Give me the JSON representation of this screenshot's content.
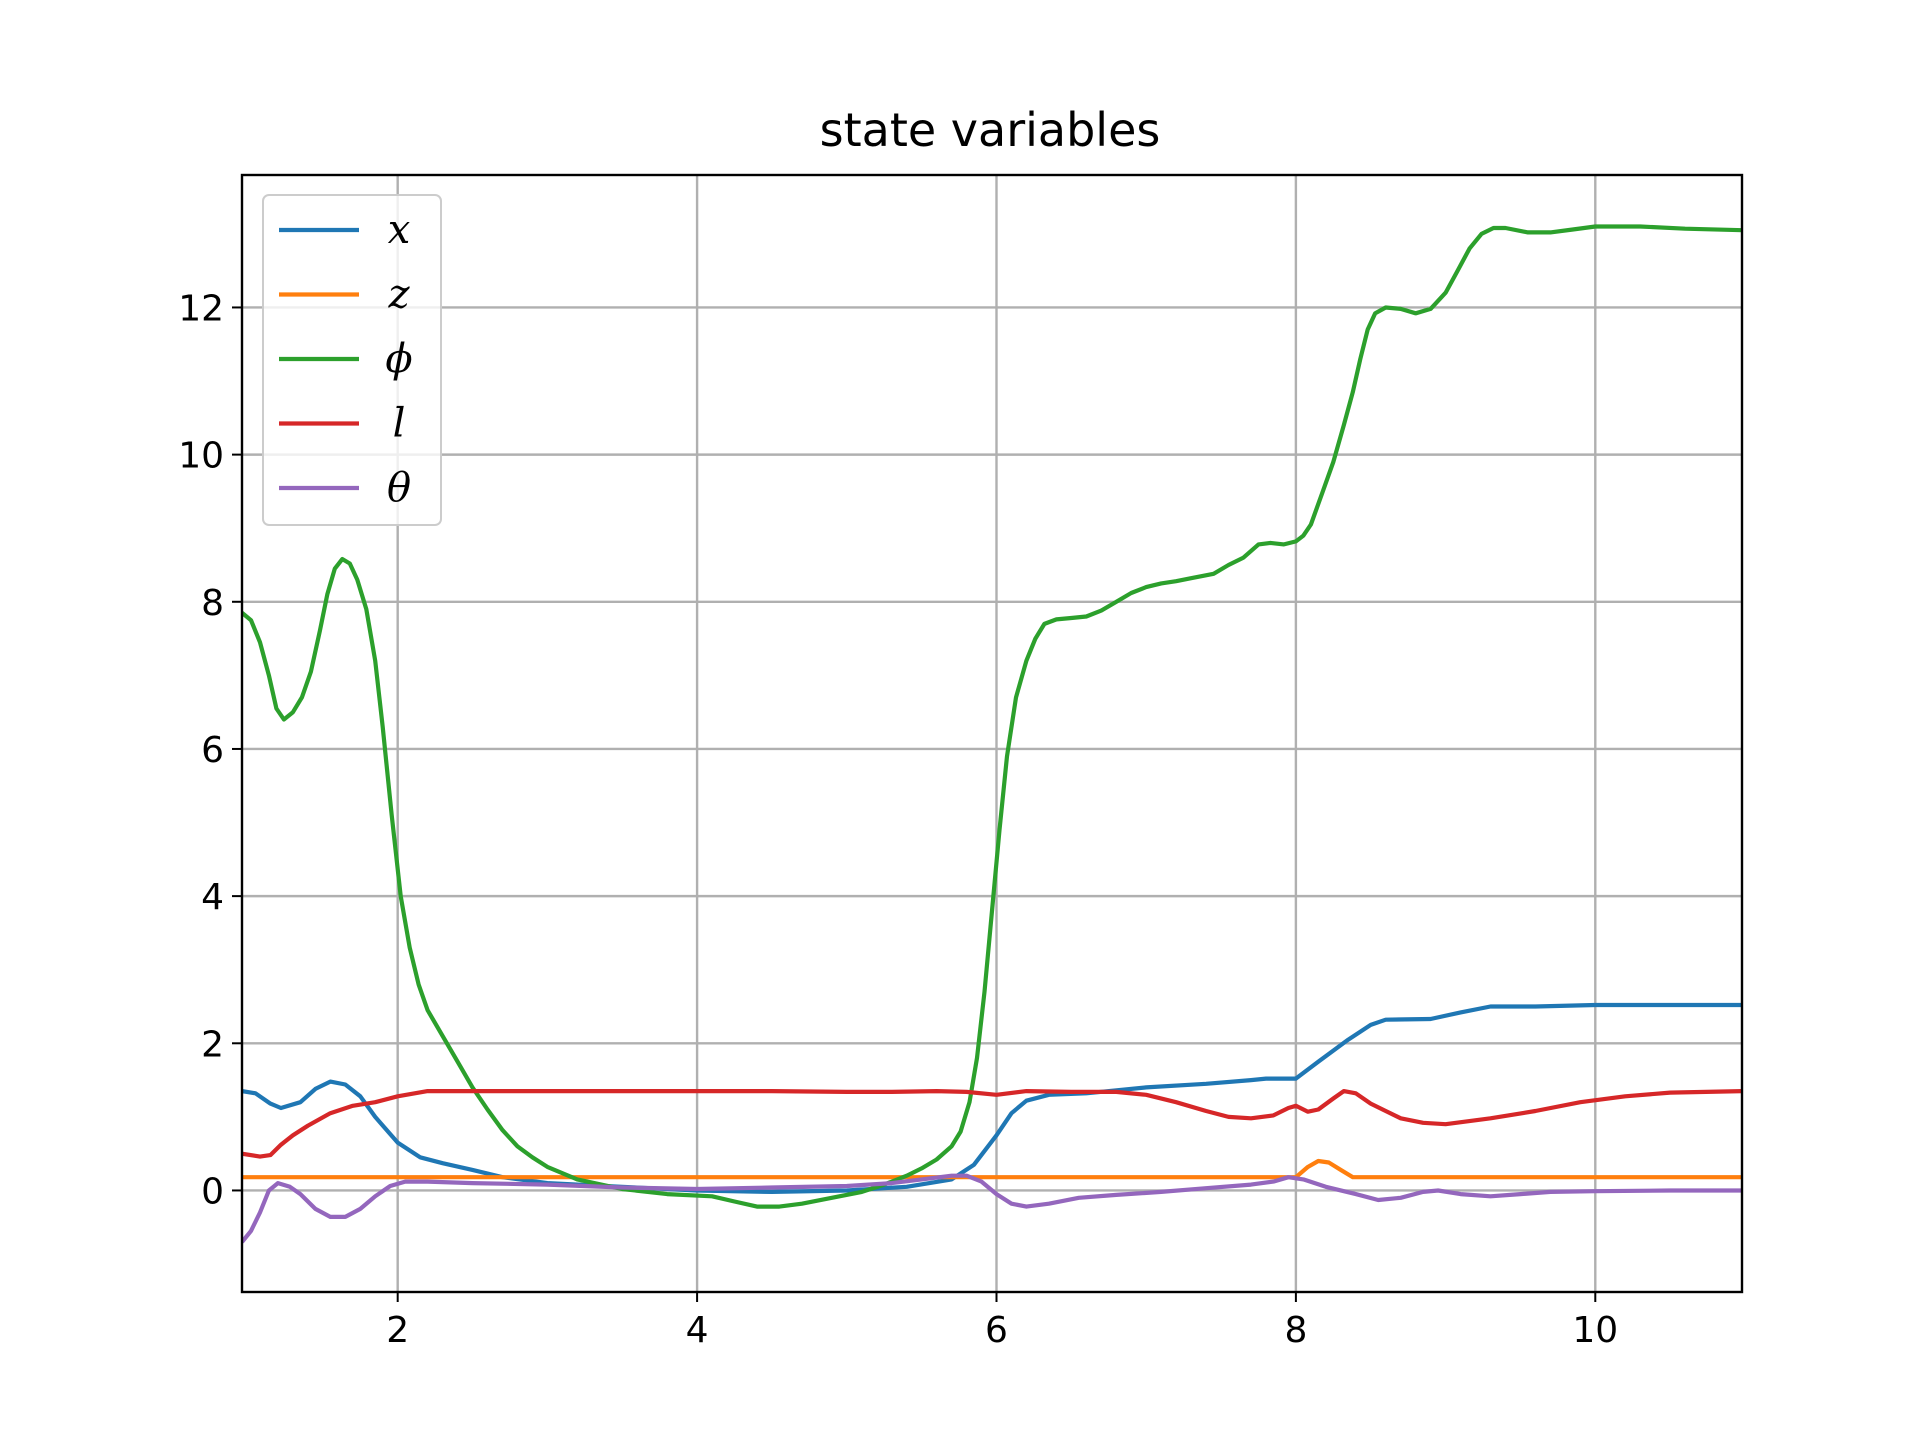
{
  "chart_data": {
    "type": "line",
    "title": "state variables",
    "xlabel": "",
    "ylabel": "",
    "xlim": [
      0.96,
      10.98
    ],
    "ylim": [
      -1.38,
      13.8
    ],
    "xticks": [
      2,
      4,
      6,
      8,
      10
    ],
    "yticks": [
      0,
      2,
      4,
      6,
      8,
      10,
      12
    ],
    "grid": true,
    "legend_position": "upper-left",
    "series": [
      {
        "name": "x",
        "color": "#1f77b4",
        "points": [
          [
            0.96,
            1.35
          ],
          [
            1.05,
            1.32
          ],
          [
            1.15,
            1.18
          ],
          [
            1.22,
            1.12
          ],
          [
            1.35,
            1.2
          ],
          [
            1.45,
            1.38
          ],
          [
            1.55,
            1.48
          ],
          [
            1.65,
            1.44
          ],
          [
            1.75,
            1.28
          ],
          [
            1.85,
            1.0
          ],
          [
            2.0,
            0.65
          ],
          [
            2.15,
            0.45
          ],
          [
            2.3,
            0.37
          ],
          [
            2.5,
            0.28
          ],
          [
            2.7,
            0.18
          ],
          [
            3.0,
            0.1
          ],
          [
            3.5,
            0.05
          ],
          [
            4.0,
            0.0
          ],
          [
            4.5,
            -0.02
          ],
          [
            5.0,
            0.0
          ],
          [
            5.4,
            0.05
          ],
          [
            5.7,
            0.15
          ],
          [
            5.85,
            0.35
          ],
          [
            6.0,
            0.75
          ],
          [
            6.1,
            1.05
          ],
          [
            6.2,
            1.22
          ],
          [
            6.35,
            1.3
          ],
          [
            6.6,
            1.32
          ],
          [
            7.0,
            1.4
          ],
          [
            7.4,
            1.45
          ],
          [
            7.7,
            1.5
          ],
          [
            7.8,
            1.52
          ],
          [
            8.0,
            1.52
          ],
          [
            8.15,
            1.75
          ],
          [
            8.35,
            2.05
          ],
          [
            8.5,
            2.25
          ],
          [
            8.6,
            2.32
          ],
          [
            8.9,
            2.33
          ],
          [
            9.1,
            2.42
          ],
          [
            9.3,
            2.5
          ],
          [
            9.6,
            2.5
          ],
          [
            10.0,
            2.52
          ],
          [
            10.98,
            2.52
          ]
        ]
      },
      {
        "name": "z",
        "color": "#ff7f0e",
        "points": [
          [
            0.96,
            0.18
          ],
          [
            2.0,
            0.18
          ],
          [
            4.0,
            0.18
          ],
          [
            6.0,
            0.18
          ],
          [
            8.0,
            0.18
          ],
          [
            8.08,
            0.32
          ],
          [
            8.15,
            0.4
          ],
          [
            8.22,
            0.38
          ],
          [
            8.3,
            0.28
          ],
          [
            8.38,
            0.18
          ],
          [
            9.0,
            0.18
          ],
          [
            10.98,
            0.18
          ]
        ]
      },
      {
        "name": "ϕ",
        "color": "#2ca02c",
        "points": [
          [
            0.96,
            7.85
          ],
          [
            1.02,
            7.75
          ],
          [
            1.08,
            7.45
          ],
          [
            1.14,
            7.0
          ],
          [
            1.19,
            6.55
          ],
          [
            1.24,
            6.4
          ],
          [
            1.3,
            6.5
          ],
          [
            1.36,
            6.7
          ],
          [
            1.42,
            7.05
          ],
          [
            1.48,
            7.6
          ],
          [
            1.53,
            8.1
          ],
          [
            1.58,
            8.45
          ],
          [
            1.63,
            8.58
          ],
          [
            1.68,
            8.52
          ],
          [
            1.73,
            8.3
          ],
          [
            1.79,
            7.9
          ],
          [
            1.85,
            7.2
          ],
          [
            1.9,
            6.3
          ],
          [
            1.96,
            5.1
          ],
          [
            2.02,
            4.0
          ],
          [
            2.08,
            3.3
          ],
          [
            2.14,
            2.8
          ],
          [
            2.2,
            2.45
          ],
          [
            2.3,
            2.1
          ],
          [
            2.4,
            1.75
          ],
          [
            2.5,
            1.4
          ],
          [
            2.6,
            1.1
          ],
          [
            2.7,
            0.82
          ],
          [
            2.8,
            0.6
          ],
          [
            2.9,
            0.45
          ],
          [
            3.0,
            0.32
          ],
          [
            3.2,
            0.15
          ],
          [
            3.5,
            0.02
          ],
          [
            3.8,
            -0.05
          ],
          [
            4.1,
            -0.08
          ],
          [
            4.25,
            -0.15
          ],
          [
            4.4,
            -0.22
          ],
          [
            4.55,
            -0.22
          ],
          [
            4.7,
            -0.18
          ],
          [
            4.9,
            -0.1
          ],
          [
            5.1,
            -0.02
          ],
          [
            5.25,
            0.08
          ],
          [
            5.4,
            0.2
          ],
          [
            5.5,
            0.3
          ],
          [
            5.6,
            0.42
          ],
          [
            5.7,
            0.6
          ],
          [
            5.76,
            0.8
          ],
          [
            5.82,
            1.2
          ],
          [
            5.87,
            1.8
          ],
          [
            5.92,
            2.7
          ],
          [
            5.97,
            3.8
          ],
          [
            6.02,
            4.9
          ],
          [
            6.07,
            5.9
          ],
          [
            6.13,
            6.7
          ],
          [
            6.2,
            7.2
          ],
          [
            6.26,
            7.5
          ],
          [
            6.32,
            7.7
          ],
          [
            6.4,
            7.76
          ],
          [
            6.5,
            7.78
          ],
          [
            6.6,
            7.8
          ],
          [
            6.7,
            7.88
          ],
          [
            6.8,
            8.0
          ],
          [
            6.9,
            8.12
          ],
          [
            7.0,
            8.2
          ],
          [
            7.1,
            8.25
          ],
          [
            7.2,
            8.28
          ],
          [
            7.3,
            8.32
          ],
          [
            7.45,
            8.38
          ],
          [
            7.55,
            8.5
          ],
          [
            7.65,
            8.6
          ],
          [
            7.75,
            8.78
          ],
          [
            7.83,
            8.8
          ],
          [
            7.92,
            8.78
          ],
          [
            8.0,
            8.82
          ],
          [
            8.05,
            8.9
          ],
          [
            8.1,
            9.05
          ],
          [
            8.18,
            9.5
          ],
          [
            8.25,
            9.9
          ],
          [
            8.32,
            10.4
          ],
          [
            8.38,
            10.85
          ],
          [
            8.43,
            11.3
          ],
          [
            8.48,
            11.7
          ],
          [
            8.53,
            11.92
          ],
          [
            8.6,
            12.0
          ],
          [
            8.7,
            11.98
          ],
          [
            8.8,
            11.92
          ],
          [
            8.9,
            11.98
          ],
          [
            9.0,
            12.2
          ],
          [
            9.08,
            12.5
          ],
          [
            9.16,
            12.8
          ],
          [
            9.24,
            13.0
          ],
          [
            9.32,
            13.08
          ],
          [
            9.4,
            13.08
          ],
          [
            9.55,
            13.02
          ],
          [
            9.7,
            13.02
          ],
          [
            9.85,
            13.06
          ],
          [
            10.0,
            13.1
          ],
          [
            10.3,
            13.1
          ],
          [
            10.6,
            13.07
          ],
          [
            10.98,
            13.05
          ]
        ]
      },
      {
        "name": "l",
        "color": "#d62728",
        "points": [
          [
            0.96,
            0.5
          ],
          [
            1.08,
            0.46
          ],
          [
            1.15,
            0.48
          ],
          [
            1.22,
            0.62
          ],
          [
            1.3,
            0.75
          ],
          [
            1.4,
            0.88
          ],
          [
            1.55,
            1.05
          ],
          [
            1.7,
            1.15
          ],
          [
            1.85,
            1.2
          ],
          [
            2.0,
            1.28
          ],
          [
            2.2,
            1.35
          ],
          [
            2.6,
            1.35
          ],
          [
            3.0,
            1.35
          ],
          [
            3.5,
            1.35
          ],
          [
            4.0,
            1.35
          ],
          [
            4.5,
            1.35
          ],
          [
            5.0,
            1.34
          ],
          [
            5.3,
            1.34
          ],
          [
            5.6,
            1.35
          ],
          [
            5.8,
            1.34
          ],
          [
            6.0,
            1.3
          ],
          [
            6.2,
            1.35
          ],
          [
            6.5,
            1.34
          ],
          [
            6.8,
            1.34
          ],
          [
            7.0,
            1.3
          ],
          [
            7.2,
            1.2
          ],
          [
            7.4,
            1.08
          ],
          [
            7.55,
            1.0
          ],
          [
            7.7,
            0.98
          ],
          [
            7.85,
            1.02
          ],
          [
            7.95,
            1.12
          ],
          [
            8.0,
            1.15
          ],
          [
            8.08,
            1.07
          ],
          [
            8.15,
            1.1
          ],
          [
            8.25,
            1.25
          ],
          [
            8.32,
            1.35
          ],
          [
            8.4,
            1.32
          ],
          [
            8.5,
            1.18
          ],
          [
            8.6,
            1.08
          ],
          [
            8.7,
            0.98
          ],
          [
            8.85,
            0.92
          ],
          [
            9.0,
            0.9
          ],
          [
            9.3,
            0.98
          ],
          [
            9.6,
            1.08
          ],
          [
            9.9,
            1.2
          ],
          [
            10.2,
            1.28
          ],
          [
            10.5,
            1.33
          ],
          [
            10.98,
            1.35
          ]
        ]
      },
      {
        "name": "θ",
        "color": "#9467bd",
        "points": [
          [
            0.96,
            -0.7
          ],
          [
            1.02,
            -0.55
          ],
          [
            1.08,
            -0.3
          ],
          [
            1.14,
            0.0
          ],
          [
            1.2,
            0.1
          ],
          [
            1.28,
            0.05
          ],
          [
            1.35,
            -0.05
          ],
          [
            1.45,
            -0.25
          ],
          [
            1.55,
            -0.36
          ],
          [
            1.65,
            -0.36
          ],
          [
            1.75,
            -0.25
          ],
          [
            1.85,
            -0.08
          ],
          [
            1.95,
            0.06
          ],
          [
            2.05,
            0.12
          ],
          [
            2.2,
            0.12
          ],
          [
            2.5,
            0.1
          ],
          [
            3.0,
            0.08
          ],
          [
            3.5,
            0.04
          ],
          [
            4.0,
            0.02
          ],
          [
            4.5,
            0.04
          ],
          [
            5.0,
            0.06
          ],
          [
            5.3,
            0.1
          ],
          [
            5.5,
            0.15
          ],
          [
            5.7,
            0.2
          ],
          [
            5.8,
            0.2
          ],
          [
            5.9,
            0.12
          ],
          [
            6.0,
            -0.05
          ],
          [
            6.1,
            -0.18
          ],
          [
            6.2,
            -0.22
          ],
          [
            6.35,
            -0.18
          ],
          [
            6.55,
            -0.1
          ],
          [
            6.8,
            -0.06
          ],
          [
            7.1,
            -0.02
          ],
          [
            7.4,
            0.03
          ],
          [
            7.7,
            0.08
          ],
          [
            7.85,
            0.12
          ],
          [
            7.95,
            0.18
          ],
          [
            8.05,
            0.15
          ],
          [
            8.2,
            0.05
          ],
          [
            8.4,
            -0.05
          ],
          [
            8.55,
            -0.13
          ],
          [
            8.7,
            -0.1
          ],
          [
            8.85,
            -0.02
          ],
          [
            8.95,
            0.0
          ],
          [
            9.1,
            -0.05
          ],
          [
            9.3,
            -0.08
          ],
          [
            9.5,
            -0.05
          ],
          [
            9.7,
            -0.02
          ],
          [
            10.0,
            -0.01
          ],
          [
            10.5,
            0.0
          ],
          [
            10.98,
            0.0
          ]
        ]
      }
    ]
  }
}
